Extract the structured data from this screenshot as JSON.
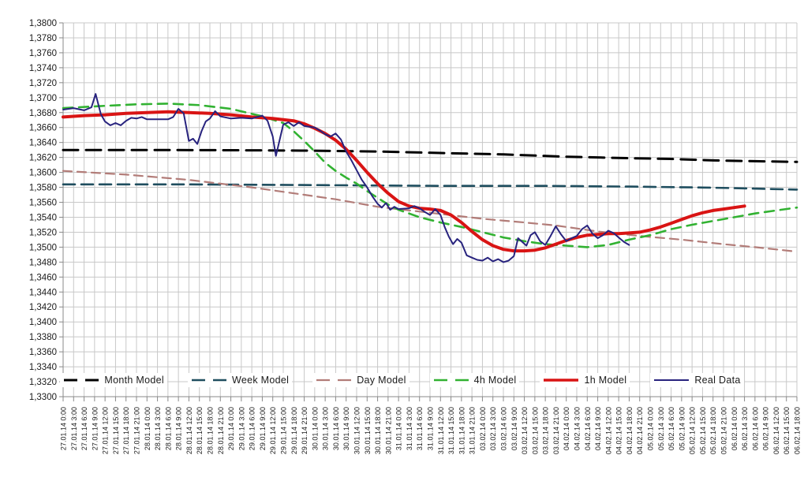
{
  "chart_data": {
    "type": "line",
    "title": "",
    "xlabel": "",
    "ylabel": "",
    "grid": true,
    "legend_position": "bottom-center-inside",
    "ylim": [
      1.33,
      1.38
    ],
    "y_step": 0.002,
    "y_tick_labels": [
      "1,3800",
      "1,3780",
      "1,3760",
      "1,3740",
      "1,3720",
      "1,3700",
      "1,3680",
      "1,3660",
      "1,3640",
      "1,3620",
      "1,3600",
      "1,3580",
      "1,3560",
      "1,3540",
      "1,3520",
      "1,3500",
      "1,3480",
      "1,3460",
      "1,3440",
      "1,3420",
      "1,3400",
      "1,3380",
      "1,3360",
      "1,3340",
      "1,3320",
      "1,3300"
    ],
    "x_labels": [
      "27.01.14 0:00",
      "27.01.14 3:00",
      "27.01.14 6:00",
      "27.01.14 9:00",
      "27.01.14 12:00",
      "27.01.14 15:00",
      "27.01.14 18:00",
      "27.01.14 21:00",
      "28.01.14 0:00",
      "28.01.14 3:00",
      "28.01.14 6:00",
      "28.01.14 9:00",
      "28.01.14 12:00",
      "28.01.14 15:00",
      "28.01.14 18:00",
      "28.01.14 21:00",
      "29.01.14 0:00",
      "29.01.14 3:00",
      "29.01.14 6:00",
      "29.01.14 9:00",
      "29.01.14 12:00",
      "29.01.14 15:00",
      "29.01.14 18:00",
      "29.01.14 21:00",
      "30.01.14 0:00",
      "30.01.14 3:00",
      "30.01.14 6:00",
      "30.01.14 9:00",
      "30.01.14 12:00",
      "30.01.14 15:00",
      "30.01.14 18:00",
      "30.01.14 21:00",
      "31.01.14 0:00",
      "31.01.14 3:00",
      "31.01.14 6:00",
      "31.01.14 9:00",
      "31.01.14 12:00",
      "31.01.14 15:00",
      "31.01.14 18:00",
      "31.01.14 21:00",
      "03.02.14 0:00",
      "03.02.14 3:00",
      "03.02.14 6:00",
      "03.02.14 9:00",
      "03.02.14 12:00",
      "03.02.14 15:00",
      "03.02.14 18:00",
      "03.02.14 21:00",
      "04.02.14 0:00",
      "04.02.14 3:00",
      "04.02.14 6:00",
      "04.02.14 9:00",
      "04.02.14 12:00",
      "04.02.14 15:00",
      "04.02.14 18:00",
      "04.02.14 21:00",
      "05.02.14 0:00",
      "05.02.14 3:00",
      "05.02.14 6:00",
      "05.02.14 9:00",
      "05.02.14 12:00",
      "05.02.14 15:00",
      "05.02.14 18:00",
      "05.02.14 21:00",
      "06.02.14 0:00",
      "06.02.14 3:00",
      "06.02.14 6:00",
      "06.02.14 9:00",
      "06.02.14 12:00",
      "06.02.14 15:00",
      "06.02.14 18:00"
    ],
    "series": [
      {
        "name": "Month Model",
        "color": "#000000",
        "style": "dashed",
        "dash": [
          19,
          10
        ],
        "width": 3,
        "points": [
          [
            0,
            1.363
          ],
          [
            10,
            1.363
          ],
          [
            18,
            1.36295
          ],
          [
            24,
            1.3629
          ],
          [
            30,
            1.3628
          ],
          [
            36,
            1.3626
          ],
          [
            42,
            1.3624
          ],
          [
            48,
            1.3621
          ],
          [
            54,
            1.3619
          ],
          [
            58,
            1.3618
          ],
          [
            62,
            1.3616
          ],
          [
            66,
            1.3615
          ],
          [
            70,
            1.3614
          ]
        ]
      },
      {
        "name": "Week Model",
        "color": "#1F4E5F",
        "style": "dashed",
        "dash": [
          15,
          8
        ],
        "width": 2.6,
        "points": [
          [
            0,
            1.3584
          ],
          [
            12,
            1.3584
          ],
          [
            24,
            1.3583
          ],
          [
            36,
            1.3582
          ],
          [
            46,
            1.3582
          ],
          [
            54,
            1.3581
          ],
          [
            60,
            1.358
          ],
          [
            64,
            1.3579
          ],
          [
            67,
            1.3578
          ],
          [
            70,
            1.3577
          ]
        ]
      },
      {
        "name": "Day Model",
        "color": "#B27C78",
        "style": "dashed",
        "dash": [
          11,
          7
        ],
        "width": 2.2,
        "points": [
          [
            0,
            1.3602
          ],
          [
            6,
            1.3597
          ],
          [
            12,
            1.359
          ],
          [
            18,
            1.358
          ],
          [
            23,
            1.357
          ],
          [
            26,
            1.3564
          ],
          [
            30,
            1.3554
          ],
          [
            35,
            1.3546
          ],
          [
            40,
            1.3538
          ],
          [
            44,
            1.3533
          ],
          [
            47,
            1.3529
          ],
          [
            51,
            1.3521
          ],
          [
            55,
            1.3515
          ],
          [
            59,
            1.351
          ],
          [
            63,
            1.3504
          ],
          [
            66,
            1.35
          ],
          [
            70,
            1.3494
          ]
        ]
      },
      {
        "name": "4h Model",
        "color": "#32B232",
        "style": "dashed",
        "dash": [
          12,
          8
        ],
        "width": 2.6,
        "points": [
          [
            0,
            1.3686
          ],
          [
            4,
            1.3689
          ],
          [
            7,
            1.3691
          ],
          [
            10,
            1.3692
          ],
          [
            13,
            1.369
          ],
          [
            16,
            1.3685
          ],
          [
            19,
            1.3675
          ],
          [
            21,
            1.3666
          ],
          [
            22,
            1.3655
          ],
          [
            23,
            1.3642
          ],
          [
            24,
            1.3628
          ],
          [
            25,
            1.3613
          ],
          [
            26,
            1.3602
          ],
          [
            27,
            1.3593
          ],
          [
            28,
            1.3585
          ],
          [
            29,
            1.3575
          ],
          [
            30,
            1.3566
          ],
          [
            31,
            1.3557
          ],
          [
            32,
            1.355
          ],
          [
            33,
            1.3545
          ],
          [
            34,
            1.354
          ],
          [
            36,
            1.3533
          ],
          [
            38,
            1.3527
          ],
          [
            40,
            1.352
          ],
          [
            42,
            1.3513
          ],
          [
            44,
            1.3508
          ],
          [
            46,
            1.3504
          ],
          [
            48,
            1.3502
          ],
          [
            50,
            1.35
          ],
          [
            52,
            1.3503
          ],
          [
            54,
            1.351
          ],
          [
            56,
            1.3516
          ],
          [
            58,
            1.3524
          ],
          [
            60,
            1.353
          ],
          [
            62,
            1.3535
          ],
          [
            64,
            1.354
          ],
          [
            66,
            1.3545
          ],
          [
            68,
            1.3549
          ],
          [
            70,
            1.3553
          ]
        ]
      },
      {
        "name": "1h Model",
        "color": "#D91414",
        "style": "solid",
        "dash": null,
        "width": 4,
        "points": [
          [
            0,
            1.3674
          ],
          [
            2,
            1.3676
          ],
          [
            4,
            1.3677
          ],
          [
            6,
            1.3679
          ],
          [
            8,
            1.368
          ],
          [
            10,
            1.3681
          ],
          [
            12,
            1.368
          ],
          [
            14,
            1.3679
          ],
          [
            16,
            1.3677
          ],
          [
            18,
            1.3674
          ],
          [
            20,
            1.3672
          ],
          [
            22,
            1.3669
          ],
          [
            23,
            1.3665
          ],
          [
            24,
            1.3659
          ],
          [
            25,
            1.3652
          ],
          [
            26,
            1.3643
          ],
          [
            27,
            1.3631
          ],
          [
            28,
            1.3616
          ],
          [
            29,
            1.36
          ],
          [
            30,
            1.3585
          ],
          [
            31,
            1.3572
          ],
          [
            32,
            1.3561
          ],
          [
            33,
            1.3555
          ],
          [
            34,
            1.3552
          ],
          [
            35,
            1.3551
          ],
          [
            36,
            1.3549
          ],
          [
            37,
            1.3543
          ],
          [
            38,
            1.3533
          ],
          [
            39,
            1.3521
          ],
          [
            40,
            1.351
          ],
          [
            41,
            1.3502
          ],
          [
            42,
            1.3497
          ],
          [
            43,
            1.3495
          ],
          [
            44,
            1.3495
          ],
          [
            45,
            1.3496
          ],
          [
            46,
            1.3499
          ],
          [
            47,
            1.3504
          ],
          [
            48,
            1.3509
          ],
          [
            49,
            1.3513
          ],
          [
            50,
            1.3516
          ],
          [
            51,
            1.3517
          ],
          [
            52,
            1.3518
          ],
          [
            53,
            1.3518
          ],
          [
            54,
            1.3519
          ],
          [
            55,
            1.352
          ],
          [
            56,
            1.3523
          ],
          [
            57,
            1.3527
          ],
          [
            58,
            1.3532
          ],
          [
            59,
            1.3537
          ],
          [
            60,
            1.3542
          ],
          [
            61,
            1.3546
          ],
          [
            62,
            1.3549
          ],
          [
            63,
            1.3551
          ],
          [
            64,
            1.3553
          ],
          [
            65,
            1.3555
          ]
        ]
      },
      {
        "name": "Real Data",
        "color": "#28237E",
        "style": "solid",
        "dash": null,
        "width": 2,
        "points": [
          [
            0,
            1.3684
          ],
          [
            1,
            1.3686
          ],
          [
            2,
            1.3683
          ],
          [
            2.7,
            1.3687
          ],
          [
            3.1,
            1.3705
          ],
          [
            3.6,
            1.3678
          ],
          [
            4,
            1.3668
          ],
          [
            4.5,
            1.3663
          ],
          [
            5,
            1.3666
          ],
          [
            5.5,
            1.3663
          ],
          [
            6,
            1.3669
          ],
          [
            6.5,
            1.3673
          ],
          [
            7,
            1.3672
          ],
          [
            7.5,
            1.3674
          ],
          [
            8,
            1.3671
          ],
          [
            9,
            1.3671
          ],
          [
            10,
            1.3671
          ],
          [
            10.5,
            1.3674
          ],
          [
            11,
            1.3685
          ],
          [
            11.5,
            1.3679
          ],
          [
            12,
            1.3642
          ],
          [
            12.4,
            1.3645
          ],
          [
            12.8,
            1.3638
          ],
          [
            13.2,
            1.3655
          ],
          [
            13.6,
            1.3668
          ],
          [
            14,
            1.3672
          ],
          [
            14.5,
            1.3682
          ],
          [
            15,
            1.3675
          ],
          [
            16,
            1.3672
          ],
          [
            17,
            1.3673
          ],
          [
            18,
            1.3672
          ],
          [
            19,
            1.3676
          ],
          [
            19.5,
            1.3669
          ],
          [
            20,
            1.3648
          ],
          [
            20.3,
            1.3622
          ],
          [
            20.7,
            1.3646
          ],
          [
            21,
            1.3664
          ],
          [
            21.5,
            1.3667
          ],
          [
            22,
            1.3662
          ],
          [
            22.5,
            1.3667
          ],
          [
            23,
            1.3662
          ],
          [
            24,
            1.366
          ],
          [
            24.5,
            1.3656
          ],
          [
            25,
            1.3651
          ],
          [
            25.5,
            1.3648
          ],
          [
            26,
            1.3652
          ],
          [
            26.5,
            1.3644
          ],
          [
            27,
            1.3628
          ],
          [
            27.5,
            1.3616
          ],
          [
            28,
            1.3603
          ],
          [
            28.5,
            1.359
          ],
          [
            29,
            1.358
          ],
          [
            29.5,
            1.3568
          ],
          [
            30,
            1.3558
          ],
          [
            30.4,
            1.3553
          ],
          [
            30.8,
            1.3559
          ],
          [
            31.2,
            1.355
          ],
          [
            31.6,
            1.3554
          ],
          [
            32,
            1.3551
          ],
          [
            33,
            1.3552
          ],
          [
            33.5,
            1.3555
          ],
          [
            34,
            1.3552
          ],
          [
            34.5,
            1.3547
          ],
          [
            35,
            1.3543
          ],
          [
            35.5,
            1.3551
          ],
          [
            36,
            1.3543
          ],
          [
            36.4,
            1.3527
          ],
          [
            36.8,
            1.3514
          ],
          [
            37.2,
            1.3504
          ],
          [
            37.6,
            1.3511
          ],
          [
            38,
            1.3506
          ],
          [
            38.5,
            1.3489
          ],
          [
            39,
            1.3486
          ],
          [
            39.5,
            1.3483
          ],
          [
            40,
            1.3482
          ],
          [
            40.5,
            1.3486
          ],
          [
            41,
            1.3481
          ],
          [
            41.5,
            1.3484
          ],
          [
            42,
            1.348
          ],
          [
            42.5,
            1.3482
          ],
          [
            43,
            1.3488
          ],
          [
            43.4,
            1.3512
          ],
          [
            43.8,
            1.3507
          ],
          [
            44.2,
            1.3502
          ],
          [
            44.6,
            1.3516
          ],
          [
            45,
            1.352
          ],
          [
            45.5,
            1.3508
          ],
          [
            46,
            1.3503
          ],
          [
            46.5,
            1.3515
          ],
          [
            47,
            1.3528
          ],
          [
            47.5,
            1.3517
          ],
          [
            48,
            1.3508
          ],
          [
            48.5,
            1.3512
          ],
          [
            49,
            1.3515
          ],
          [
            49.5,
            1.3524
          ],
          [
            50,
            1.3529
          ],
          [
            50.5,
            1.3518
          ],
          [
            51,
            1.3512
          ],
          [
            51.5,
            1.3516
          ],
          [
            52,
            1.3522
          ],
          [
            52.5,
            1.3519
          ],
          [
            53,
            1.3513
          ],
          [
            53.5,
            1.3507
          ],
          [
            54,
            1.3503
          ]
        ]
      }
    ],
    "colors": {
      "gridline": "#C8C8C8",
      "axis": "#898989",
      "tick_label": "#1a1a1a"
    }
  }
}
